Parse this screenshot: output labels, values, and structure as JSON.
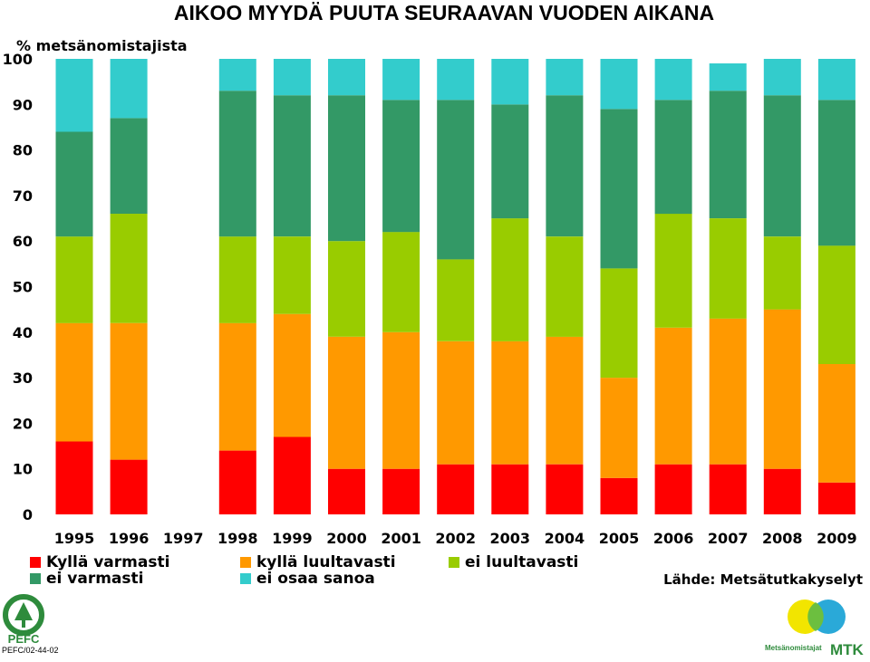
{
  "chart_data": {
    "type": "bar",
    "stacked": true,
    "title": "AIKOO MYYDÄ PUUTA SEURAAVAN VUODEN AIKANA",
    "ylabel": "% metsänomistajista",
    "ylim": [
      0,
      100
    ],
    "yticks": [
      0,
      10,
      20,
      30,
      40,
      50,
      60,
      70,
      80,
      90,
      100
    ],
    "grid": false,
    "legend_position": "bottom",
    "categories": [
      "1995",
      "1996",
      "1997",
      "1998",
      "1999",
      "2000",
      "2001",
      "2002",
      "2003",
      "2004",
      "2005",
      "2006",
      "2007",
      "2008",
      "2009"
    ],
    "series": [
      {
        "name": "Kyllä varmasti",
        "color": "#ff0000",
        "values": [
          16,
          12,
          null,
          14,
          17,
          10,
          10,
          11,
          11,
          11,
          8,
          11,
          11,
          10,
          7
        ]
      },
      {
        "name": "kyllä luultavasti",
        "color": "#ff9900",
        "values": [
          26,
          30,
          null,
          28,
          27,
          29,
          30,
          27,
          27,
          28,
          22,
          30,
          32,
          35,
          26
        ]
      },
      {
        "name": "ei luultavasti",
        "color": "#99cc00",
        "values": [
          19,
          24,
          null,
          19,
          17,
          21,
          22,
          18,
          27,
          22,
          24,
          25,
          22,
          16,
          26
        ]
      },
      {
        "name": "ei varmasti",
        "color": "#339966",
        "values": [
          23,
          21,
          null,
          32,
          31,
          32,
          29,
          35,
          25,
          31,
          35,
          25,
          28,
          31,
          32
        ]
      },
      {
        "name": "ei osaa sanoa",
        "color": "#33cccc",
        "values": [
          16,
          13,
          null,
          7,
          8,
          8,
          9,
          9,
          10,
          8,
          11,
          9,
          6,
          8,
          9
        ]
      }
    ]
  },
  "source": "Lähde: Metsätutkakyselyt",
  "logos": {
    "pefc_text": "PEFC",
    "pefc_code": "PEFC/02-44-02",
    "mtk_small": "Metsänomistajat",
    "mtk_big": "MTK"
  }
}
